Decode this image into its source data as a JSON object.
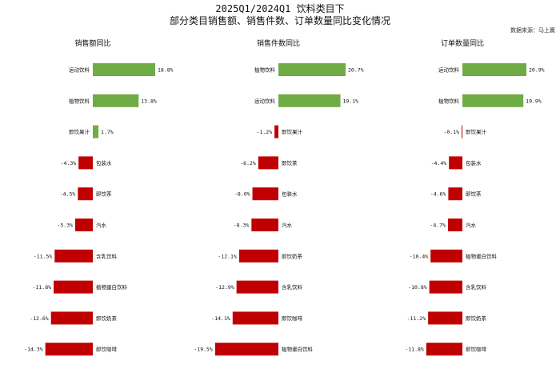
{
  "title_line1": "2025Q1/2024Q1 饮料类目下",
  "title_line2": "部分类目销售额、销售件数、订单数量同比变化情况",
  "source_note": "数据来源：马上赢",
  "colors": {
    "positive": "#6fac46",
    "negative": "#c00000"
  },
  "chart_data": [
    {
      "type": "bar",
      "orientation": "horizontal",
      "title": "销售额同比",
      "categories": [
        "运动饮料",
        "植物饮料",
        "即饮果汁",
        "包装水",
        "即饮茶",
        "汽水",
        "含乳饮料",
        "植物蛋白饮料",
        "即饮奶茶",
        "即饮咖啡"
      ],
      "values": [
        18.8,
        13.8,
        1.7,
        -4.3,
        -4.5,
        -5.3,
        -11.5,
        -11.8,
        -12.6,
        -14.3
      ],
      "labels": [
        "18.8%",
        "13.8%",
        "1.7%",
        "-4.3%",
        "-4.5%",
        "-5.3%",
        "-11.5%",
        "-11.8%",
        "-12.6%",
        "-14.3%"
      ]
    },
    {
      "type": "bar",
      "orientation": "horizontal",
      "title": "销售件数同比",
      "categories": [
        "植物饮料",
        "运动饮料",
        "即饮果汁",
        "即饮茶",
        "包装水",
        "汽水",
        "即饮奶茶",
        "含乳饮料",
        "即饮咖啡",
        "植物蛋白饮料"
      ],
      "values": [
        20.7,
        19.1,
        -1.2,
        -6.2,
        -8.0,
        -8.3,
        -12.1,
        -12.9,
        -14.1,
        -19.5
      ],
      "labels": [
        "20.7%",
        "19.1%",
        "-1.2%",
        "-6.2%",
        "-8.0%",
        "-8.3%",
        "-12.1%",
        "-12.9%",
        "-14.1%",
        "-19.5%"
      ]
    },
    {
      "type": "bar",
      "orientation": "horizontal",
      "title": "订单数量同比",
      "categories": [
        "运动饮料",
        "植物饮料",
        "即饮果汁",
        "包装水",
        "即饮茶",
        "汽水",
        "植物蛋白饮料",
        "含乳饮料",
        "即饮奶茶",
        "即饮咖啡"
      ],
      "values": [
        20.9,
        19.9,
        -0.1,
        -4.4,
        -4.6,
        -4.7,
        -10.4,
        -10.8,
        -11.2,
        -11.8
      ],
      "labels": [
        "20.9%",
        "19.9%",
        "-0.1%",
        "-4.4%",
        "-4.6%",
        "-4.7%",
        "-10.4%",
        "-10.8%",
        "-11.2%",
        "-11.8%"
      ]
    }
  ]
}
